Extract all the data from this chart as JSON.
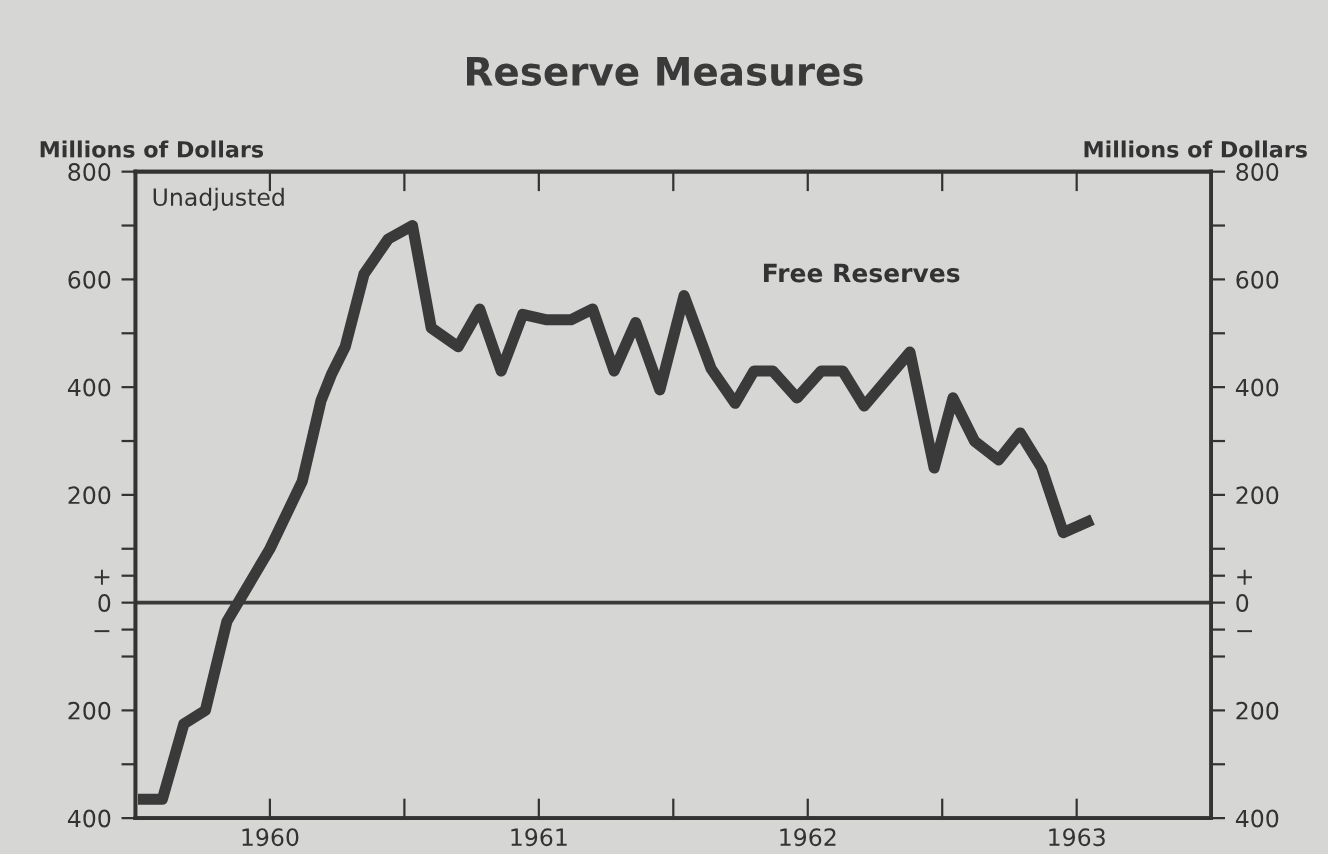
{
  "chart_data": {
    "type": "line",
    "title": "Reserve Measures",
    "ylabel": "Millions of Dollars",
    "y2label": "Millions of Dollars",
    "annotations": [
      "Unadjusted"
    ],
    "x": [
      1959.53,
      1959.6,
      1959.68,
      1959.76,
      1959.84,
      1960.0,
      1960.12,
      1960.19,
      1960.23,
      1960.28,
      1960.35,
      1960.44,
      1960.53,
      1960.6,
      1960.7,
      1960.78,
      1960.86,
      1960.94,
      1961.03,
      1961.12,
      1961.2,
      1961.28,
      1961.36,
      1961.45,
      1961.54,
      1961.64,
      1961.73,
      1961.8,
      1961.87,
      1961.96,
      1962.05,
      1962.13,
      1962.21,
      1962.38,
      1962.47,
      1962.54,
      1962.62,
      1962.71,
      1962.79,
      1962.87,
      1962.95,
      1963.04
    ],
    "series": [
      {
        "name": "Free Reserves",
        "color": "#3a3a3a",
        "values": [
          -365,
          -365,
          -225,
          -200,
          -35,
          100,
          225,
          375,
          425,
          475,
          610,
          675,
          700,
          510,
          475,
          545,
          430,
          535,
          525,
          525,
          545,
          430,
          520,
          395,
          570,
          435,
          370,
          430,
          430,
          380,
          430,
          430,
          365,
          465,
          250,
          380,
          300,
          265,
          315,
          250,
          130,
          150
        ]
      }
    ],
    "xlim": [
      1959.5,
      1963.5
    ],
    "xticks": [
      {
        "value": 1960,
        "label": "1960"
      },
      {
        "value": 1960.5,
        "label": null
      },
      {
        "value": 1961,
        "label": "1961"
      },
      {
        "value": 1961.5,
        "label": null
      },
      {
        "value": 1962,
        "label": "1962"
      },
      {
        "value": 1962.5,
        "label": null
      },
      {
        "value": 1963,
        "label": "1963"
      }
    ],
    "ylim": [
      -400,
      800
    ],
    "yticks": [
      {
        "value": -400,
        "label": "400"
      },
      {
        "value": -300,
        "label": null
      },
      {
        "value": -200,
        "label": "200"
      },
      {
        "value": -100,
        "label": null
      },
      {
        "value": -50,
        "label": "−"
      },
      0,
      {
        "value": 50,
        "label": "+"
      },
      {
        "value": 100,
        "label": null
      },
      200,
      {
        "value": 300,
        "label": null
      },
      400,
      {
        "value": 500,
        "label": null
      },
      600,
      {
        "value": 700,
        "label": null
      },
      800
    ],
    "y2lim": [
      -400,
      800
    ],
    "y2ticks": [
      {
        "value": -400,
        "label": "400"
      },
      {
        "value": -300,
        "label": null
      },
      {
        "value": -200,
        "label": "200"
      },
      {
        "value": -100,
        "label": null
      },
      {
        "value": -50,
        "label": "−"
      },
      0,
      {
        "value": 50,
        "label": "+"
      },
      {
        "value": 100,
        "label": null
      },
      200,
      {
        "value": 300,
        "label": null
      },
      400,
      {
        "value": 500,
        "label": null
      },
      600,
      {
        "value": 700,
        "label": null
      },
      800
    ],
    "ref_lines": [
      {
        "axis": "y",
        "value": 0,
        "color": "#3a3a3a"
      }
    ],
    "grid": false,
    "legend": false,
    "line_style": "solid",
    "marker": "none"
  }
}
